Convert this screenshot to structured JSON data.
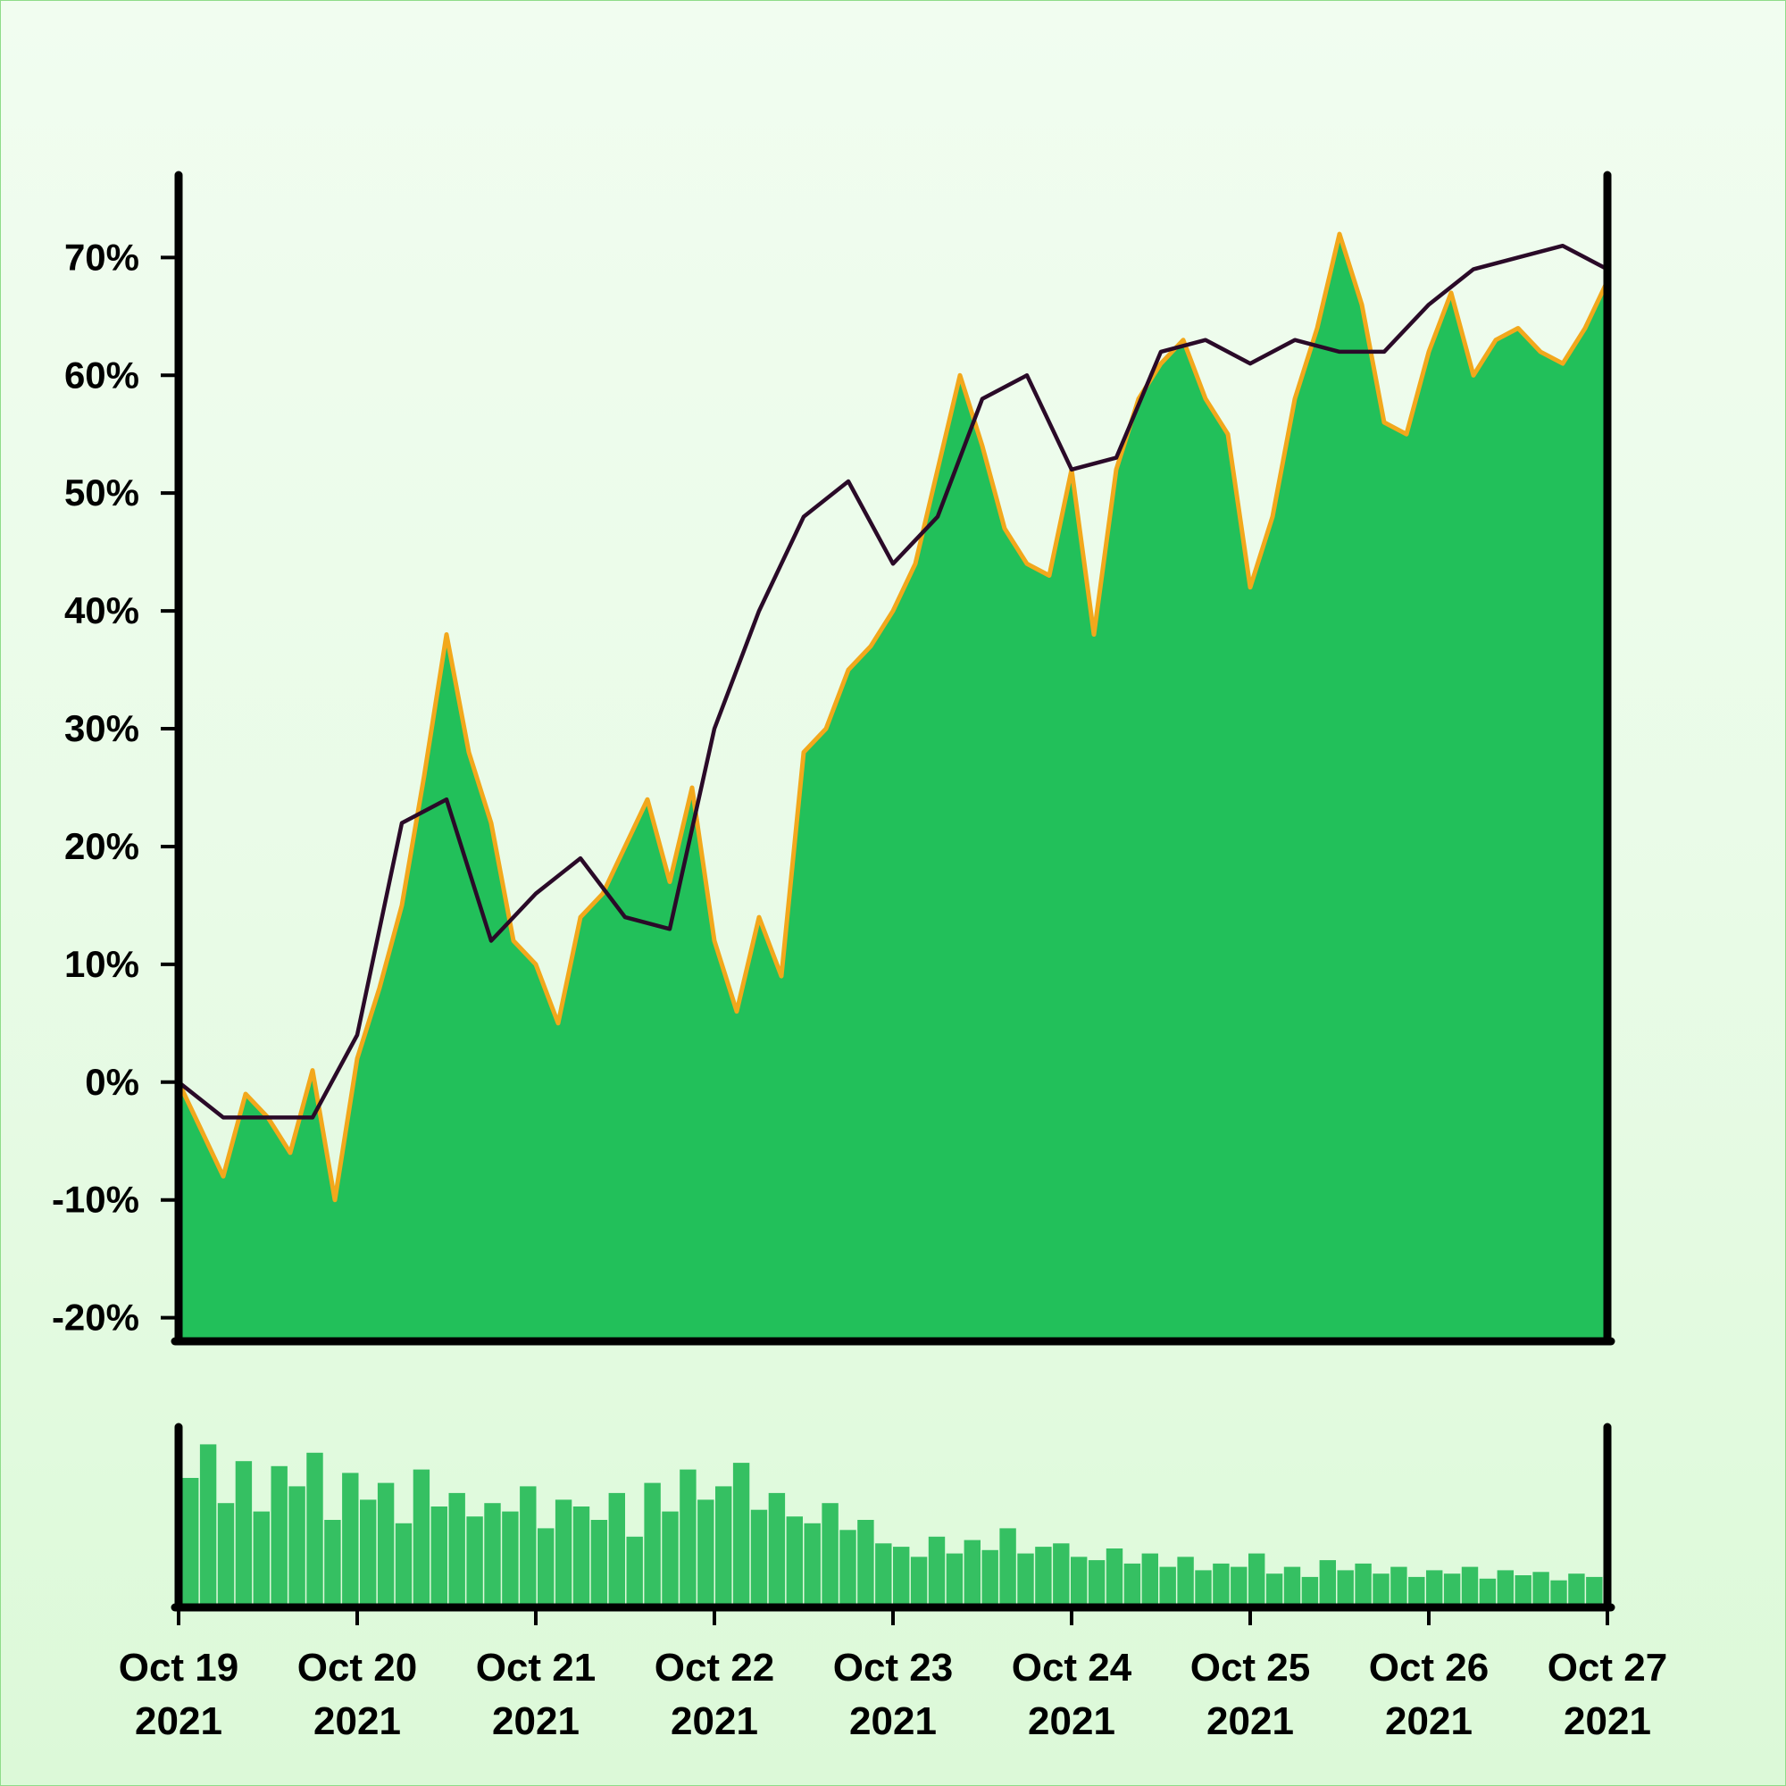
{
  "chart_data": [
    {
      "type": "area",
      "title": "",
      "xlabel": "",
      "ylabel": "",
      "ylim": [
        -22,
        77
      ],
      "y_ticks": [
        -20,
        -10,
        0,
        10,
        20,
        30,
        40,
        50,
        60,
        70
      ],
      "y_tick_format": "percent",
      "grid": false,
      "legend": "none",
      "x_range": [
        "2021-10-19",
        "2021-10-27"
      ],
      "colors": {
        "area_fill": "#22c05a",
        "area_edge": "#f2a81c",
        "moving_average": "#2a0a28"
      },
      "series": [
        {
          "role": "price-area",
          "x": [
            "2021-10-19 00:00",
            "2021-10-19 03:00",
            "2021-10-19 06:00",
            "2021-10-19 09:00",
            "2021-10-19 12:00",
            "2021-10-19 15:00",
            "2021-10-19 18:00",
            "2021-10-19 21:00",
            "2021-10-20 00:00",
            "2021-10-20 03:00",
            "2021-10-20 06:00",
            "2021-10-20 09:00",
            "2021-10-20 12:00",
            "2021-10-20 15:00",
            "2021-10-20 18:00",
            "2021-10-20 21:00",
            "2021-10-21 00:00",
            "2021-10-21 03:00",
            "2021-10-21 06:00",
            "2021-10-21 09:00",
            "2021-10-21 12:00",
            "2021-10-21 15:00",
            "2021-10-21 18:00",
            "2021-10-21 21:00",
            "2021-10-22 00:00",
            "2021-10-22 03:00",
            "2021-10-22 06:00",
            "2021-10-22 09:00",
            "2021-10-22 12:00",
            "2021-10-22 15:00",
            "2021-10-22 18:00",
            "2021-10-22 21:00",
            "2021-10-23 00:00",
            "2021-10-23 03:00",
            "2021-10-23 06:00",
            "2021-10-23 09:00",
            "2021-10-23 12:00",
            "2021-10-23 15:00",
            "2021-10-23 18:00",
            "2021-10-23 21:00",
            "2021-10-24 00:00",
            "2021-10-24 03:00",
            "2021-10-24 06:00",
            "2021-10-24 09:00",
            "2021-10-24 12:00",
            "2021-10-24 15:00",
            "2021-10-24 18:00",
            "2021-10-24 21:00",
            "2021-10-25 00:00",
            "2021-10-25 03:00",
            "2021-10-25 06:00",
            "2021-10-25 09:00",
            "2021-10-25 12:00",
            "2021-10-25 15:00",
            "2021-10-25 18:00",
            "2021-10-25 21:00",
            "2021-10-26 00:00",
            "2021-10-26 03:00",
            "2021-10-26 06:00",
            "2021-10-26 09:00",
            "2021-10-26 12:00",
            "2021-10-26 15:00",
            "2021-10-26 18:00",
            "2021-10-26 21:00",
            "2021-10-27 00:00"
          ],
          "values": [
            0,
            -4,
            -8,
            -1,
            -3,
            -6,
            1,
            -10,
            2,
            8,
            15,
            26,
            38,
            28,
            22,
            12,
            10,
            5,
            14,
            16,
            20,
            24,
            17,
            25,
            12,
            6,
            14,
            9,
            28,
            30,
            35,
            37,
            40,
            44,
            52,
            60,
            54,
            47,
            44,
            43,
            52,
            38,
            52,
            58,
            61,
            63,
            58,
            55,
            42,
            48,
            58,
            64,
            72,
            66,
            56,
            55,
            62,
            67,
            60,
            63,
            64,
            62,
            61,
            64,
            68
          ]
        },
        {
          "role": "moving-average",
          "x": [
            "2021-10-19 00:00",
            "2021-10-19 06:00",
            "2021-10-19 12:00",
            "2021-10-19 18:00",
            "2021-10-20 00:00",
            "2021-10-20 06:00",
            "2021-10-20 12:00",
            "2021-10-20 18:00",
            "2021-10-21 00:00",
            "2021-10-21 06:00",
            "2021-10-21 12:00",
            "2021-10-21 18:00",
            "2021-10-22 00:00",
            "2021-10-22 06:00",
            "2021-10-22 12:00",
            "2021-10-22 18:00",
            "2021-10-23 00:00",
            "2021-10-23 06:00",
            "2021-10-23 12:00",
            "2021-10-23 18:00",
            "2021-10-24 00:00",
            "2021-10-24 06:00",
            "2021-10-24 12:00",
            "2021-10-24 18:00",
            "2021-10-25 00:00",
            "2021-10-25 06:00",
            "2021-10-25 12:00",
            "2021-10-25 18:00",
            "2021-10-26 00:00",
            "2021-10-26 06:00",
            "2021-10-26 12:00",
            "2021-10-26 18:00",
            "2021-10-27 00:00"
          ],
          "values": [
            0,
            -3,
            -3,
            -3,
            4,
            22,
            24,
            12,
            16,
            19,
            14,
            13,
            30,
            40,
            48,
            51,
            44,
            48,
            58,
            60,
            52,
            53,
            62,
            63,
            61,
            63,
            62,
            62,
            66,
            69,
            70,
            71,
            69
          ]
        }
      ]
    },
    {
      "type": "bar",
      "title": "",
      "role": "volume",
      "x_range": [
        "2021-10-19",
        "2021-10-27"
      ],
      "x_tick_labels": [
        {
          "month_day": "Oct 19",
          "year": "2021"
        },
        {
          "month_day": "Oct 20",
          "year": "2021"
        },
        {
          "month_day": "Oct 21",
          "year": "2021"
        },
        {
          "month_day": "Oct 22",
          "year": "2021"
        },
        {
          "month_day": "Oct 23",
          "year": "2021"
        },
        {
          "month_day": "Oct 24",
          "year": "2021"
        },
        {
          "month_day": "Oct 25",
          "year": "2021"
        },
        {
          "month_day": "Oct 26",
          "year": "2021"
        },
        {
          "month_day": "Oct 27",
          "year": "2021"
        }
      ],
      "color": "#35c062",
      "y_axis_labels": "none",
      "relative_values": [
        0.75,
        0.95,
        0.6,
        0.85,
        0.55,
        0.82,
        0.7,
        0.9,
        0.5,
        0.78,
        0.62,
        0.72,
        0.48,
        0.8,
        0.58,
        0.66,
        0.52,
        0.6,
        0.55,
        0.7,
        0.45,
        0.62,
        0.58,
        0.5,
        0.66,
        0.4,
        0.72,
        0.55,
        0.8,
        0.62,
        0.7,
        0.84,
        0.56,
        0.66,
        0.52,
        0.48,
        0.6,
        0.44,
        0.5,
        0.36,
        0.34,
        0.28,
        0.4,
        0.3,
        0.38,
        0.32,
        0.45,
        0.3,
        0.34,
        0.36,
        0.28,
        0.26,
        0.33,
        0.24,
        0.3,
        0.22,
        0.28,
        0.2,
        0.24,
        0.22,
        0.3,
        0.18,
        0.22,
        0.16,
        0.26,
        0.2,
        0.24,
        0.18,
        0.22,
        0.16,
        0.2,
        0.18,
        0.22,
        0.15,
        0.2,
        0.17,
        0.19,
        0.14,
        0.18,
        0.16
      ]
    }
  ]
}
